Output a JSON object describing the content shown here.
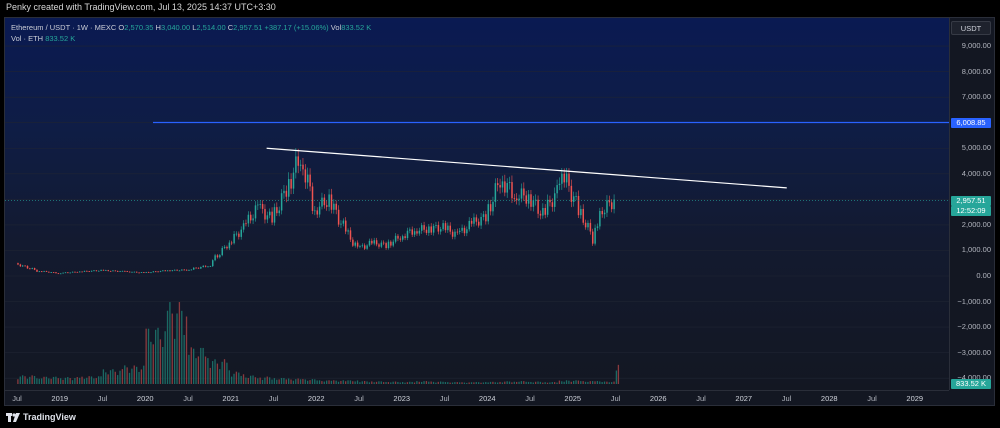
{
  "header": {
    "created_by": "Penky created with TradingView.com, Jul 13, 2025 14:37 UTC+3:30"
  },
  "legend": {
    "symbol": "Ethereum / USDT · 1W · MEXC",
    "o_label": "O",
    "o_value": "2,570.35",
    "h_label": "H",
    "h_value": "3,040.00",
    "l_label": "L",
    "l_value": "2,514.00",
    "c_label": "C",
    "c_value": "2,957.51",
    "change": "+387.17 (+15.06%)",
    "vol_label": "Vol",
    "vol_value": "833.52 K",
    "vol_line_label": "Vol · ETH",
    "vol_line_value": "833.52 K"
  },
  "price_axis": {
    "currency_button": "USDT",
    "labels": [
      "9,000.00",
      "8,000.00",
      "7,000.00",
      "6,000.00",
      "5,000.00",
      "4,000.00",
      "3,000.00",
      "2,000.00",
      "1,000.00",
      "0.00",
      "−1,000.00",
      "−2,000.00",
      "−3,000.00",
      "−4,000.00"
    ],
    "level_tag": "6,008.85",
    "last_price_tag": "2,957.51",
    "countdown_tag": "12:52:09",
    "volume_tag": "833.52 K"
  },
  "time_axis": {
    "labels": [
      "Jul",
      "2019",
      "Jul",
      "2020",
      "Jul",
      "2021",
      "Jul",
      "2022",
      "Jul",
      "2023",
      "Jul",
      "2024",
      "Jul",
      "2025",
      "Jul",
      "2026",
      "Jul",
      "2027",
      "Jul",
      "2028",
      "Jul",
      "2029"
    ]
  },
  "drawings": {
    "horizontal_level": 6008.85,
    "trendline_start": {
      "date": "2021-06",
      "price": 5000
    },
    "trendline_end": {
      "date": "2027-07",
      "price": 3450
    }
  },
  "chart_data": {
    "type": "candlestick",
    "symbol": "ETH/USDT",
    "interval": "1W",
    "ylim": [
      -4300,
      9800
    ],
    "x": [
      "2018-07",
      "2018-10",
      "2019-01",
      "2019-04",
      "2019-07",
      "2019-10",
      "2020-01",
      "2020-04",
      "2020-07",
      "2020-10",
      "2021-01",
      "2021-03",
      "2021-05",
      "2021-07",
      "2021-09",
      "2021-11",
      "2022-01",
      "2022-03",
      "2022-05",
      "2022-07",
      "2022-09",
      "2022-11",
      "2023-01",
      "2023-03",
      "2023-05",
      "2023-07",
      "2023-09",
      "2023-11",
      "2024-01",
      "2024-03",
      "2024-05",
      "2024-07",
      "2024-09",
      "2024-11",
      "2024-12",
      "2025-02",
      "2025-04",
      "2025-05",
      "2025-07"
    ],
    "close": [
      480,
      210,
      110,
      170,
      220,
      180,
      130,
      210,
      240,
      400,
      1300,
      1900,
      2700,
      2200,
      3400,
      4700,
      2600,
      3000,
      1900,
      1050,
      1300,
      1200,
      1550,
      1800,
      1850,
      1900,
      1600,
      2050,
      2300,
      3800,
      3200,
      3100,
      2400,
      3300,
      3900,
      2600,
      1500,
      2500,
      2957.51
    ],
    "volume_k": [
      350,
      300,
      280,
      320,
      600,
      750,
      2300,
      3300,
      1500,
      1000,
      500,
      350,
      300,
      250,
      220,
      200,
      150,
      150,
      150,
      120,
      110,
      100,
      90,
      120,
      100,
      80,
      70,
      80,
      90,
      110,
      120,
      100,
      80,
      140,
      150,
      120,
      120,
      100,
      833.52
    ]
  },
  "footer": {
    "brand": "TradingView"
  },
  "colors": {
    "up": "#26a69a",
    "down": "#ef5350",
    "level_line": "#2962ff",
    "trendline": "#ffffff",
    "background": "#131722"
  }
}
